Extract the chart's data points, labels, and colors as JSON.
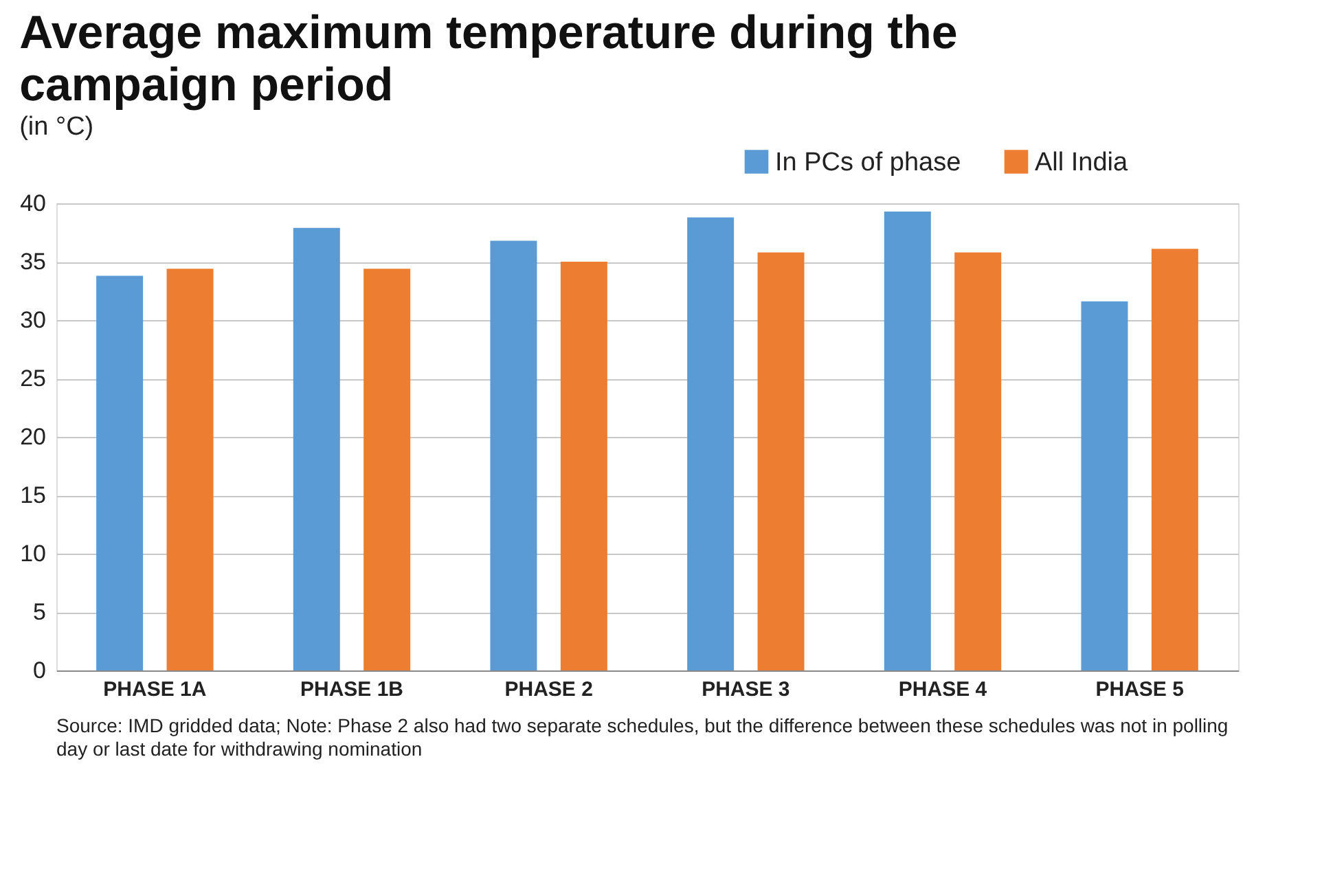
{
  "chart_data": {
    "type": "bar",
    "title": "Average maximum temperature during the campaign period",
    "subtitle": "(in °C)",
    "categories": [
      "PHASE 1A",
      "PHASE 1B",
      "PHASE 2",
      "PHASE 3",
      "PHASE 4",
      "PHASE 5"
    ],
    "series": [
      {
        "name": "In PCs of phase",
        "color": "#5b9bd5",
        "values": [
          33.8,
          37.9,
          36.8,
          38.8,
          39.3,
          31.6
        ]
      },
      {
        "name": "All India",
        "color": "#ed7d31",
        "values": [
          34.4,
          34.4,
          35.0,
          35.8,
          35.8,
          36.1
        ]
      }
    ],
    "ylim": [
      0,
      40
    ],
    "yticks": [
      0,
      5,
      10,
      15,
      20,
      25,
      30,
      35,
      40
    ],
    "grid": "y",
    "legend": "top right",
    "annotations": [
      "Source: IMD gridded data; Note: Phase 2 also had two separate schedules, but the difference between these schedules was not in polling day or last date for withdrawing nomination"
    ]
  }
}
